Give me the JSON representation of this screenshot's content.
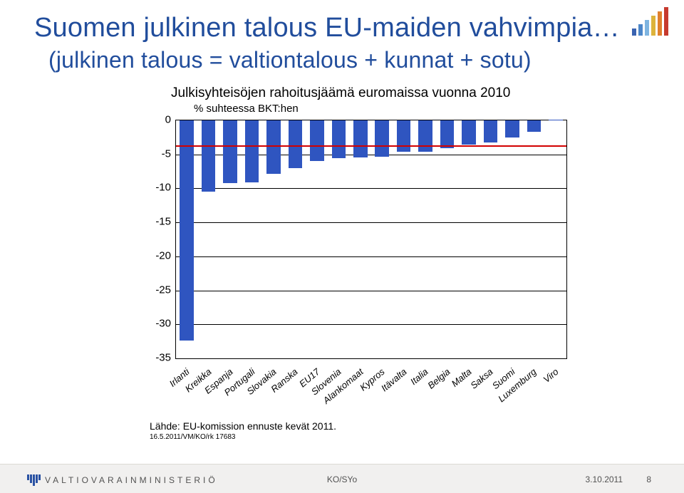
{
  "title": "Suomen julkinen talous EU-maiden vahvimpia…",
  "subtitle": "(julkinen talous = valtiontalous + kunnat + sotu)",
  "chart": {
    "type": "bar",
    "title": "Julkisyhteisöjen rahoitusjäämä euromaissa vuonna 2010",
    "sub": "% suhteessa BKT:hen",
    "ylim": [
      -35,
      0
    ],
    "ytick_step": 5,
    "yticks": [
      0,
      -5,
      -10,
      -15,
      -20,
      -25,
      -30,
      -35
    ],
    "grid_color": "#000000",
    "background_color": "#ffffff",
    "bar_default_color": "#2f55c0",
    "bar_highlight_color": "#2f55c0",
    "reference_line": {
      "value": -3.8,
      "color": "#d20000",
      "width": 2
    },
    "categories": [
      "Irlanti",
      "Kreikka",
      "Espanja",
      "Portugali",
      "Slovakia",
      "Ranska",
      "EU17",
      "Slovenia",
      "Alankomaat",
      "Kypros",
      "Itävalta",
      "Italia",
      "Belgia",
      "Malta",
      "Saksa",
      "Suomi",
      "Luxemburg",
      "Viro"
    ],
    "values": [
      -32.4,
      -10.5,
      -9.2,
      -9.1,
      -7.9,
      -7.0,
      -6.0,
      -5.6,
      -5.4,
      -5.3,
      -4.6,
      -4.6,
      -4.1,
      -3.6,
      -3.3,
      -2.5,
      -1.7,
      0.1
    ],
    "highlight_index": 15,
    "bar_width_ratio": 0.64
  },
  "source": "Lähde: EU-komission ennuste kevät 2011.",
  "source_small": "16.5.2011/VM/KO/rk 17683",
  "footer": {
    "ministry": "VALTIOVARAINMINISTERIÖ",
    "center": "KO/SYo",
    "date": "3.10.2011",
    "page": "8"
  },
  "corner_colors": [
    "#3a63b0",
    "#4b86c8",
    "#7eb4e0",
    "#ddb33c",
    "#e0802d",
    "#c73a2e"
  ],
  "corner_heights": [
    10,
    16,
    22,
    28,
    34,
    40
  ]
}
